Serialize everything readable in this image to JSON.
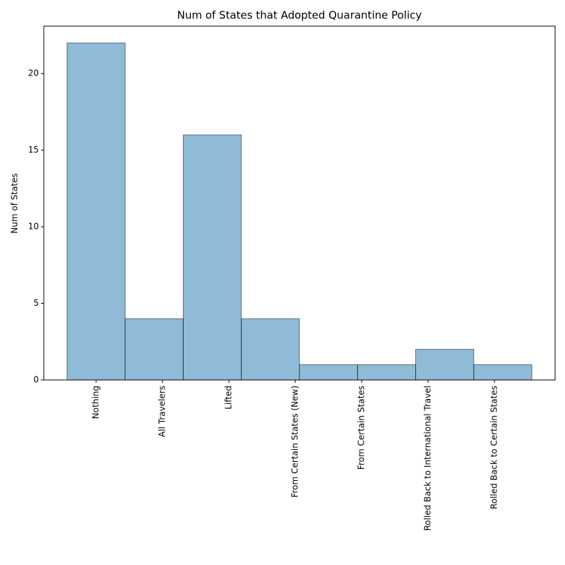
{
  "chart_data": {
    "type": "histogram",
    "title": "Num of States that Adopted Quarantine Policy",
    "ylabel": "Num of States",
    "bins": [
      -0.4375,
      0.4375,
      1.3125,
      2.1875,
      3.0625,
      3.9375,
      4.8125,
      5.6875,
      6.5625
    ],
    "values": [
      22,
      4,
      16,
      4,
      1,
      1,
      2,
      1
    ],
    "color": "#1f77b4",
    "alpha": 0.5,
    "edgecolor": "#000000",
    "xlim": [
      -0.7875,
      6.9125
    ],
    "xticks": [
      {
        "value": 0,
        "label": "Nothing"
      },
      {
        "value": 1,
        "label": "All Travelers"
      },
      {
        "value": 2,
        "label": "Lifted"
      },
      {
        "value": 3,
        "label": "From Certain States (New)"
      },
      {
        "value": 4,
        "label": "From Certain States"
      },
      {
        "value": 5,
        "label": "Rolled Back to International Travel"
      },
      {
        "value": 6,
        "label": "Rolled Back to Certain States"
      }
    ],
    "ylim": [
      0,
      23.1
    ],
    "yticks": [
      0,
      5,
      10,
      15,
      20
    ],
    "grid": false
  }
}
